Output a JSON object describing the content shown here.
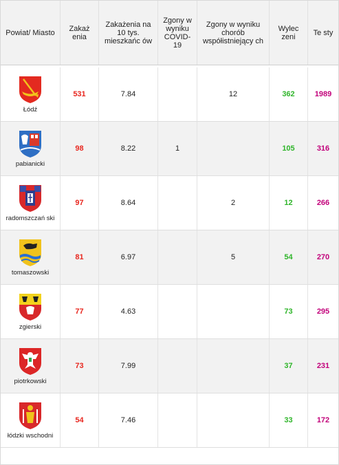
{
  "header": {
    "col_region": "Powiat/ Miasto",
    "col_infections": "Zakaż enia",
    "col_per10k": "Zakażenia na 10 tys. mieszkańc ów",
    "col_deaths_covid": "Zgony w wyniku COVID- 19",
    "col_deaths_comorb": "Zgony w wyniku chorób współistniejący ch",
    "col_recovered": "Wylec zeni",
    "col_tests": "Te sty"
  },
  "colors": {
    "infections": "#e8271f",
    "recovered": "#2fb52a",
    "tests": "#c2007a",
    "header_bg": "#f2f2f2"
  },
  "rows": [
    {
      "name": "Łódź",
      "crest": "lodz-crest-icon",
      "infections": "531",
      "per10k": "7.84",
      "deaths_covid": "",
      "deaths_comorb": "12",
      "recovered": "362",
      "tests": "1989"
    },
    {
      "name": "pabianicki",
      "crest": "pabianicki-crest-icon",
      "infections": "98",
      "per10k": "8.22",
      "deaths_covid": "1",
      "deaths_comorb": "",
      "recovered": "105",
      "tests": "316"
    },
    {
      "name": "radomszczań ski",
      "crest": "radomszczanski-crest-icon",
      "infections": "97",
      "per10k": "8.64",
      "deaths_covid": "",
      "deaths_comorb": "2",
      "recovered": "12",
      "tests": "266"
    },
    {
      "name": "tomaszowski",
      "crest": "tomaszowski-crest-icon",
      "infections": "81",
      "per10k": "6.97",
      "deaths_covid": "",
      "deaths_comorb": "5",
      "recovered": "54",
      "tests": "270"
    },
    {
      "name": "zgierski",
      "crest": "zgierski-crest-icon",
      "infections": "77",
      "per10k": "4.63",
      "deaths_covid": "",
      "deaths_comorb": "",
      "recovered": "73",
      "tests": "295"
    },
    {
      "name": "piotrkowski",
      "crest": "piotrkowski-crest-icon",
      "infections": "73",
      "per10k": "7.99",
      "deaths_covid": "",
      "deaths_comorb": "",
      "recovered": "37",
      "tests": "231"
    },
    {
      "name": "łódzki wschodni",
      "crest": "lodzki-wschodni-crest-icon",
      "infections": "54",
      "per10k": "7.46",
      "deaths_covid": "",
      "deaths_comorb": "",
      "recovered": "33",
      "tests": "172"
    }
  ]
}
